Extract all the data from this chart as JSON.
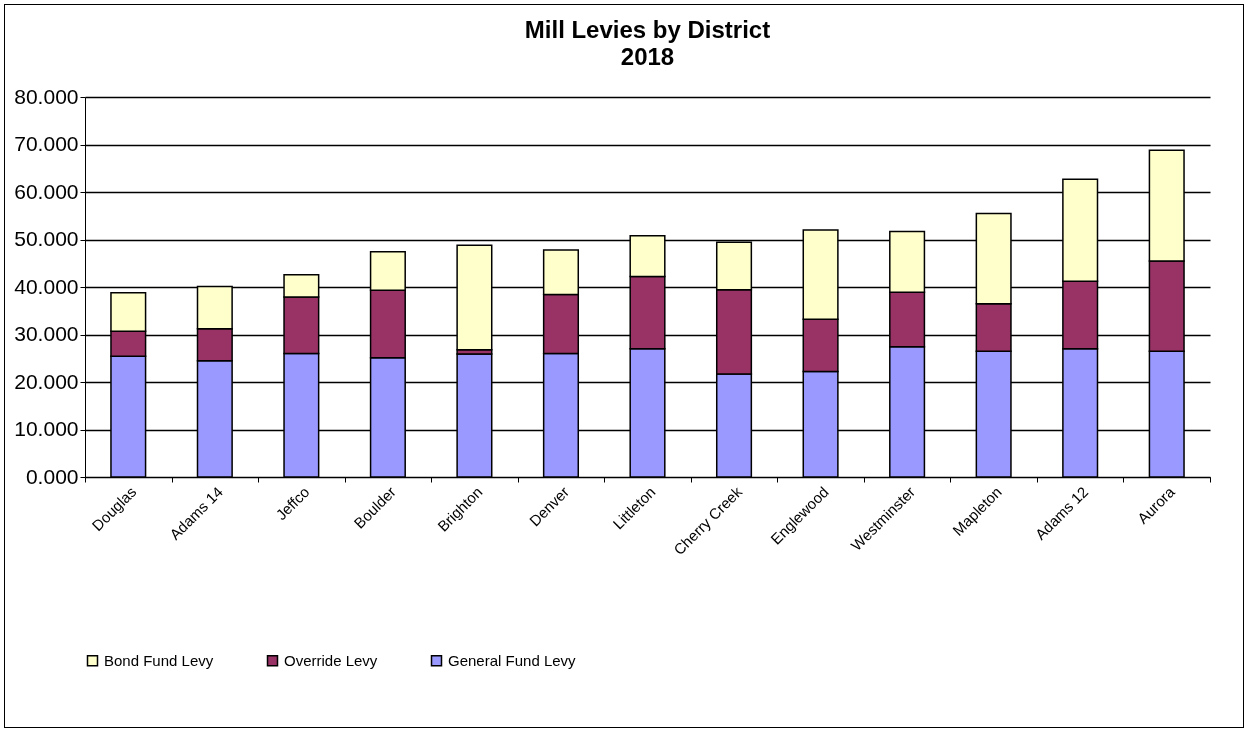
{
  "chart_data": {
    "type": "bar",
    "title": "Mill Levies by District",
    "subtitle": "2018",
    "stacked": true,
    "categories": [
      "Douglas",
      "Adams 14",
      "Jeffco",
      "Boulder",
      "Brighton",
      "Denver",
      "Littleton",
      "Cherry Creek",
      "Englewood",
      "Westminster",
      "Mapleton",
      "Adams 12",
      "Aurora"
    ],
    "series": [
      {
        "name": "General Fund Levy",
        "color": "#9999ff",
        "values": [
          25.4,
          24.5,
          26.0,
          25.1,
          25.9,
          26.0,
          27.0,
          21.7,
          22.2,
          27.4,
          26.5,
          27.0,
          26.5
        ]
      },
      {
        "name": "Override Levy",
        "color": "#993366",
        "values": [
          5.3,
          6.7,
          11.9,
          14.2,
          0.9,
          12.4,
          15.2,
          17.7,
          11.0,
          11.5,
          10.0,
          14.2,
          19.0
        ]
      },
      {
        "name": "Bond Fund Levy",
        "color": "#ffffcc",
        "values": [
          8.1,
          8.9,
          4.7,
          8.1,
          22.0,
          9.4,
          8.6,
          10.0,
          18.8,
          12.8,
          19.0,
          21.5,
          23.3
        ]
      }
    ],
    "ylim": [
      0,
      80
    ],
    "yticks": [
      {
        "value": 0,
        "label": "0.000"
      },
      {
        "value": 10,
        "label": "10.000"
      },
      {
        "value": 20,
        "label": "20.000"
      },
      {
        "value": 30,
        "label": "30.000"
      },
      {
        "value": 40,
        "label": "40.000"
      },
      {
        "value": 50,
        "label": "50.000"
      },
      {
        "value": 60,
        "label": "60.000"
      },
      {
        "value": 70,
        "label": "70.000"
      },
      {
        "value": 80,
        "label": "80.000"
      }
    ],
    "grid": "y",
    "legend": "bottom"
  }
}
